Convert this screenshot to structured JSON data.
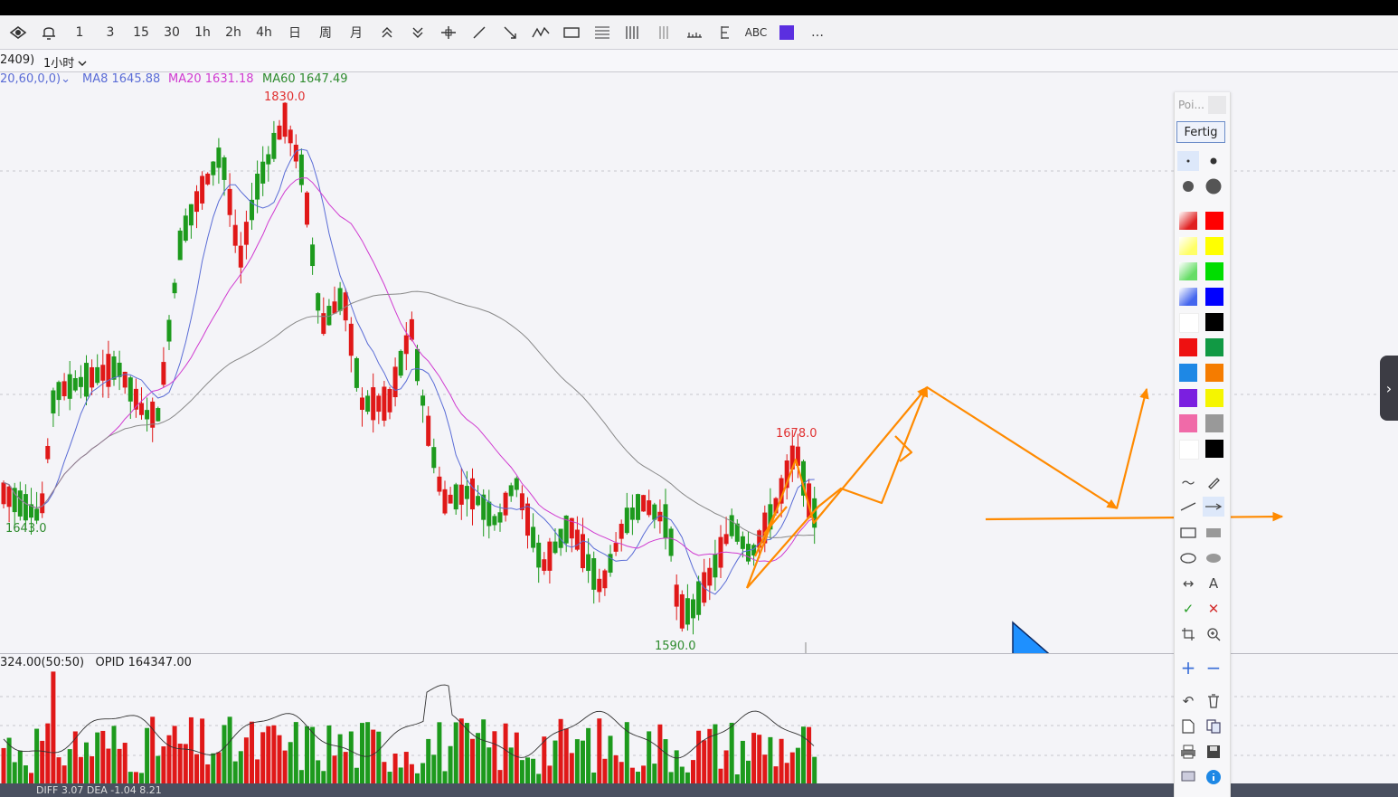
{
  "toolbar": {
    "items": [
      "1",
      "3",
      "15",
      "30",
      "1h",
      "2h",
      "4h",
      "日",
      "周",
      "月",
      "ABC",
      "…"
    ]
  },
  "info": {
    "contract": "2409)",
    "period": "1小时"
  },
  "ma": {
    "params": "20,60,0,0)",
    "ma8": "MA8 1645.88",
    "ma20": "MA20 1631.18",
    "ma60": "MA60 1647.49",
    "colors": {
      "ma8": "#5a6cd6",
      "ma20": "#d03ad0",
      "ma60": "#2e8b2e"
    }
  },
  "price_labels": {
    "high": "1830.0",
    "local_high": "1678.0",
    "low_left": "1643.0",
    "low": "1590.0"
  },
  "volume": {
    "label": "324.00(50:50)",
    "opid": "OPID 164347.00"
  },
  "bottom": {
    "macd": "DIFF 3.07   DEA -1.04   8.21"
  },
  "palette": {
    "title": "Poi...",
    "done_button": "Fertig",
    "colors": [
      "#e02020",
      "#ff0000",
      "#ffff66",
      "#ffff00",
      "#66dd66",
      "#00dd00",
      "#4466ee",
      "#0000ff",
      "#ffffff",
      "#000000",
      "#ee1111",
      "#119944",
      "#1e88e5",
      "#f57c00",
      "#7b1fe0",
      "#f5f500",
      "#f06aa8",
      "#999999",
      "#ffffff",
      "#000000"
    ],
    "accent": "#ff8a00"
  },
  "chart_data": {
    "type": "candlestick",
    "ylim": [
      1580,
      1840
    ],
    "annotations": [
      "1830.0",
      "1678.0",
      "1643.0",
      "1590.0"
    ],
    "ma_series": [
      {
        "name": "MA8",
        "last": 1645.88
      },
      {
        "name": "MA20",
        "last": 1631.18
      },
      {
        "name": "MA60",
        "last": 1647.49
      }
    ]
  }
}
